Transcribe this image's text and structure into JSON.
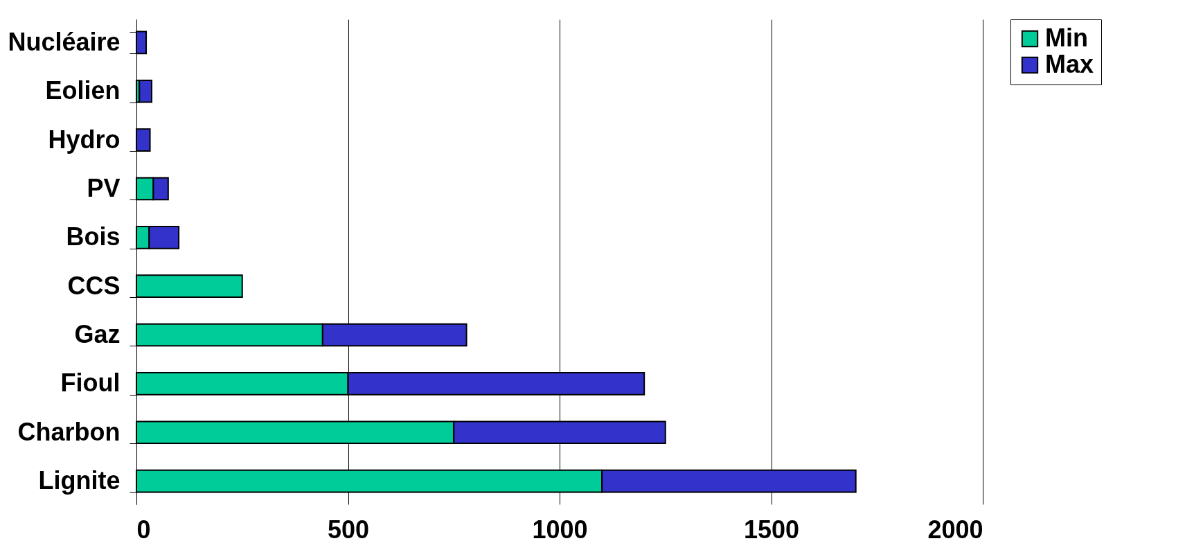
{
  "chart_data": {
    "type": "bar",
    "orientation": "horizontal",
    "stacked": true,
    "categories": [
      "Nucléaire",
      "Eolien",
      "Hydro",
      "PV",
      "Bois",
      "CCS",
      "Gaz",
      "Fioul",
      "Charbon",
      "Lignite"
    ],
    "series": [
      {
        "name": "Min",
        "color": "#00cc99",
        "values": [
          null,
          7,
          null,
          40,
          30,
          250,
          440,
          500,
          750,
          1100
        ]
      },
      {
        "name": "Max",
        "color": "#3333cc",
        "values": [
          23,
          29,
          32,
          35,
          70,
          null,
          340,
          700,
          500,
          600
        ]
      }
    ],
    "xlim": [
      0,
      2000
    ],
    "xticks": [
      0,
      500,
      1000,
      1500,
      2000
    ],
    "grid": "x",
    "legend": "right"
  }
}
